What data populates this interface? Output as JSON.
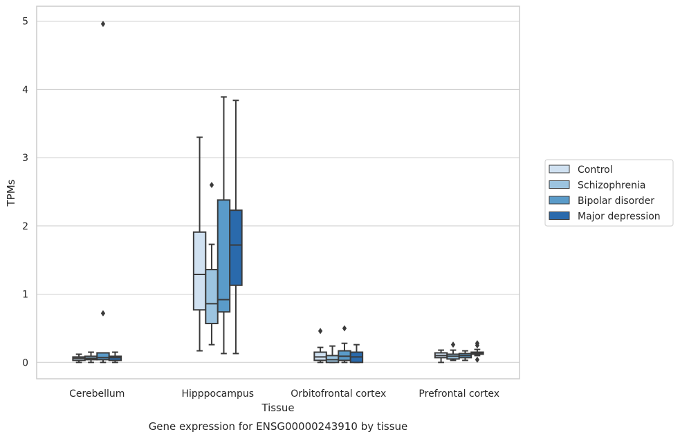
{
  "chart_data": {
    "type": "box",
    "title": "",
    "caption": "Gene expression for ENSG00000243910 by tissue",
    "xlabel": "Tissue",
    "ylabel": "TPMs",
    "ylim": [
      -0.24,
      5.22
    ],
    "yticks": [
      0,
      1,
      2,
      3,
      4,
      5
    ],
    "grid": "horizontal",
    "legend_position": "right",
    "categories": [
      "Cerebellum",
      "Hipppocampus",
      "Orbitofrontal cortex",
      "Prefrontal cortex"
    ],
    "series": [
      {
        "name": "Control",
        "color": "#d0e1f1",
        "boxes": [
          {
            "min": 0.0,
            "q1": 0.03,
            "median": 0.06,
            "q3": 0.08,
            "max": 0.12,
            "outliers": []
          },
          {
            "min": 0.17,
            "q1": 0.77,
            "median": 1.29,
            "q3": 1.91,
            "max": 3.3,
            "outliers": []
          },
          {
            "min": 0.0,
            "q1": 0.03,
            "median": 0.08,
            "q3": 0.15,
            "max": 0.22,
            "outliers": [
              0.46
            ]
          },
          {
            "min": 0.0,
            "q1": 0.07,
            "median": 0.1,
            "q3": 0.14,
            "max": 0.18,
            "outliers": []
          }
        ]
      },
      {
        "name": "Schizophrenia",
        "color": "#9cc4e0",
        "boxes": [
          {
            "min": 0.0,
            "q1": 0.04,
            "median": 0.06,
            "q3": 0.09,
            "max": 0.15,
            "outliers": []
          },
          {
            "min": 0.26,
            "q1": 0.57,
            "median": 0.86,
            "q3": 1.36,
            "max": 1.73,
            "outliers": [
              2.6
            ]
          },
          {
            "min": 0.0,
            "q1": 0.0,
            "median": 0.04,
            "q3": 0.1,
            "max": 0.24,
            "outliers": []
          },
          {
            "min": 0.03,
            "q1": 0.05,
            "median": 0.09,
            "q3": 0.12,
            "max": 0.18,
            "outliers": [
              0.26
            ]
          }
        ]
      },
      {
        "name": "Bipolar disorder",
        "color": "#5a9bc9",
        "boxes": [
          {
            "min": 0.0,
            "q1": 0.04,
            "median": 0.07,
            "q3": 0.14,
            "max": 0.14,
            "outliers": [
              4.96,
              0.72
            ]
          },
          {
            "min": 0.13,
            "q1": 0.74,
            "median": 0.92,
            "q3": 2.38,
            "max": 3.89,
            "outliers": []
          },
          {
            "min": 0.0,
            "q1": 0.03,
            "median": 0.09,
            "q3": 0.17,
            "max": 0.28,
            "outliers": [
              0.5
            ]
          },
          {
            "min": 0.03,
            "q1": 0.07,
            "median": 0.1,
            "q3": 0.13,
            "max": 0.17,
            "outliers": []
          }
        ]
      },
      {
        "name": "Major depression",
        "color": "#2a6aac",
        "boxes": [
          {
            "min": 0.0,
            "q1": 0.03,
            "median": 0.07,
            "q3": 0.09,
            "max": 0.15,
            "outliers": []
          },
          {
            "min": 0.13,
            "q1": 1.13,
            "median": 1.72,
            "q3": 2.23,
            "max": 3.84,
            "outliers": []
          },
          {
            "min": 0.0,
            "q1": 0.0,
            "median": 0.08,
            "q3": 0.15,
            "max": 0.26,
            "outliers": []
          },
          {
            "min": 0.1,
            "q1": 0.12,
            "median": 0.14,
            "q3": 0.15,
            "max": 0.19,
            "outliers": [
              0.25,
              0.28,
              0.04
            ]
          }
        ]
      }
    ]
  }
}
